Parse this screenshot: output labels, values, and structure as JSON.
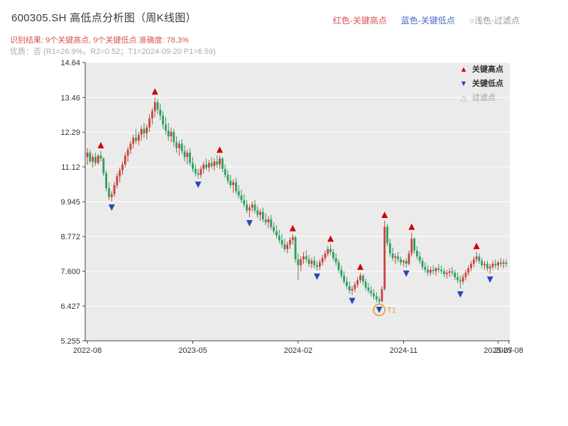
{
  "header": {
    "title": "600305.SH 高低点分析图（周K线图）",
    "top_legend": [
      {
        "label": "红色-关键高点",
        "color": "#d9544f"
      },
      {
        "label": "蓝色-关键低点",
        "color": "#4a69c9"
      },
      {
        "label": "○浅色-过滤点",
        "color": "#999999"
      }
    ],
    "result_line": "识别结果: 9个关键高点, 9个关键低点  准确度: 78.3%",
    "result_color": "#d9544f",
    "quality_line": "优质：否 (R1=26.9%，R2=0.52；T1=2024-09-20 P1=6.59)",
    "quality_color": "#aaaaaa"
  },
  "legend_box": {
    "items": [
      {
        "label": "关键高点",
        "symbol": "▲",
        "color": "#d40000"
      },
      {
        "label": "关键低点",
        "symbol": "▼",
        "color": "#2b46bd"
      },
      {
        "label": "过滤点",
        "symbol": "△",
        "color": "#aaaaaa"
      }
    ]
  },
  "chart_data": {
    "type": "candlestick",
    "title": "600305.SH 高低点分析图（周K线图）",
    "freq": "weekly",
    "ylim": [
      5.255,
      14.64
    ],
    "y_ticks": [
      "14.64",
      "13.46",
      "12.29",
      "11.12",
      "9.945",
      "8.772",
      "7.600",
      "6.427",
      "5.255"
    ],
    "x_ticks": [
      {
        "label": "2022-08",
        "index": 0
      },
      {
        "label": "2023-05",
        "index": 39
      },
      {
        "label": "2024-02",
        "index": 78
      },
      {
        "label": "2024-11",
        "index": 117
      },
      {
        "label": "2025-07",
        "index": 152
      },
      {
        "label": "2025-08",
        "index": 156
      }
    ],
    "colors": {
      "up": "#c8423c",
      "down": "#2e9e5e",
      "high_marker": "#d40000",
      "low_marker": "#2b46bd",
      "t1": "#e2a23c",
      "plot_bg": "#ebebeb",
      "axis": "#444444",
      "tick_text": "#333333"
    },
    "candles": [
      [
        11.45,
        11.75,
        11.2,
        11.6
      ],
      [
        11.6,
        11.7,
        11.25,
        11.3
      ],
      [
        11.3,
        11.55,
        11.1,
        11.45
      ],
      [
        11.45,
        11.6,
        11.15,
        11.25
      ],
      [
        11.25,
        11.55,
        11.2,
        11.5
      ],
      [
        11.5,
        11.65,
        11.3,
        11.4
      ],
      [
        11.4,
        11.45,
        10.8,
        10.9
      ],
      [
        10.9,
        11.0,
        10.3,
        10.4
      ],
      [
        10.4,
        10.6,
        10.0,
        10.1
      ],
      [
        10.1,
        10.3,
        9.95,
        10.2
      ],
      [
        10.2,
        10.6,
        10.1,
        10.5
      ],
      [
        10.5,
        10.9,
        10.4,
        10.8
      ],
      [
        10.8,
        11.1,
        10.6,
        11.0
      ],
      [
        11.0,
        11.3,
        10.85,
        11.2
      ],
      [
        11.2,
        11.6,
        11.1,
        11.5
      ],
      [
        11.5,
        11.8,
        11.3,
        11.7
      ],
      [
        11.7,
        12.0,
        11.55,
        11.9
      ],
      [
        11.9,
        12.2,
        11.75,
        12.1
      ],
      [
        12.1,
        12.4,
        11.9,
        12.0
      ],
      [
        12.0,
        12.3,
        11.85,
        12.2
      ],
      [
        12.2,
        12.5,
        12.0,
        12.4
      ],
      [
        12.4,
        12.6,
        12.1,
        12.25
      ],
      [
        12.25,
        12.55,
        12.05,
        12.45
      ],
      [
        12.45,
        12.9,
        12.3,
        12.75
      ],
      [
        12.75,
        13.1,
        12.55,
        13.0
      ],
      [
        13.0,
        13.46,
        12.8,
        13.3
      ],
      [
        13.3,
        13.4,
        12.9,
        13.05
      ],
      [
        13.05,
        13.25,
        12.7,
        12.85
      ],
      [
        12.85,
        13.0,
        12.4,
        12.55
      ],
      [
        12.55,
        12.8,
        12.2,
        12.35
      ],
      [
        12.35,
        12.6,
        12.0,
        12.15
      ],
      [
        12.15,
        12.45,
        11.95,
        12.3
      ],
      [
        12.3,
        12.4,
        11.8,
        11.95
      ],
      [
        11.95,
        12.15,
        11.6,
        11.75
      ],
      [
        11.75,
        12.0,
        11.5,
        11.9
      ],
      [
        11.9,
        12.05,
        11.55,
        11.65
      ],
      [
        11.65,
        11.85,
        11.3,
        11.45
      ],
      [
        11.45,
        11.7,
        11.2,
        11.6
      ],
      [
        11.6,
        11.75,
        11.15,
        11.25
      ],
      [
        11.25,
        11.45,
        10.95,
        11.05
      ],
      [
        11.05,
        11.2,
        10.8,
        10.9
      ],
      [
        10.9,
        11.05,
        10.72,
        10.85
      ],
      [
        10.85,
        11.15,
        10.75,
        11.05
      ],
      [
        11.05,
        11.3,
        10.9,
        11.2
      ],
      [
        11.2,
        11.4,
        11.0,
        11.1
      ],
      [
        11.1,
        11.35,
        10.95,
        11.25
      ],
      [
        11.25,
        11.45,
        11.05,
        11.15
      ],
      [
        11.15,
        11.4,
        11.0,
        11.3
      ],
      [
        11.3,
        11.5,
        11.1,
        11.2
      ],
      [
        11.2,
        11.5,
        11.05,
        11.4
      ],
      [
        11.4,
        11.45,
        10.95,
        11.05
      ],
      [
        11.05,
        11.2,
        10.75,
        10.85
      ],
      [
        10.85,
        11.0,
        10.55,
        10.65
      ],
      [
        10.65,
        10.85,
        10.4,
        10.5
      ],
      [
        10.5,
        10.7,
        10.25,
        10.6
      ],
      [
        10.6,
        10.75,
        10.2,
        10.3
      ],
      [
        10.3,
        10.5,
        10.05,
        10.15
      ],
      [
        10.15,
        10.35,
        9.9,
        10.0
      ],
      [
        10.0,
        10.2,
        9.75,
        9.85
      ],
      [
        9.85,
        10.0,
        9.55,
        9.65
      ],
      [
        9.65,
        9.85,
        9.42,
        9.75
      ],
      [
        9.75,
        9.95,
        9.6,
        9.85
      ],
      [
        9.85,
        10.0,
        9.55,
        9.65
      ],
      [
        9.65,
        9.8,
        9.4,
        9.5
      ],
      [
        9.5,
        9.7,
        9.3,
        9.6
      ],
      [
        9.6,
        9.75,
        9.25,
        9.35
      ],
      [
        9.35,
        9.55,
        9.15,
        9.25
      ],
      [
        9.25,
        9.45,
        9.05,
        9.35
      ],
      [
        9.35,
        9.5,
        9.0,
        9.1
      ],
      [
        9.1,
        9.25,
        8.85,
        8.95
      ],
      [
        8.95,
        9.15,
        8.7,
        8.8
      ],
      [
        8.8,
        9.0,
        8.55,
        8.65
      ],
      [
        8.65,
        8.85,
        8.4,
        8.5
      ],
      [
        8.5,
        8.7,
        8.25,
        8.35
      ],
      [
        8.35,
        8.6,
        8.2,
        8.5
      ],
      [
        8.5,
        8.75,
        8.35,
        8.65
      ],
      [
        8.65,
        8.85,
        8.5,
        8.75
      ],
      [
        8.75,
        8.8,
        7.9,
        8.0
      ],
      [
        8.0,
        8.2,
        7.3,
        7.8
      ],
      [
        7.8,
        8.1,
        7.6,
        8.0
      ],
      [
        8.0,
        8.25,
        7.85,
        8.1
      ],
      [
        8.1,
        8.3,
        7.9,
        8.0
      ],
      [
        8.0,
        8.15,
        7.75,
        7.85
      ],
      [
        7.85,
        8.05,
        7.7,
        7.95
      ],
      [
        7.95,
        8.1,
        7.7,
        7.8
      ],
      [
        7.8,
        7.95,
        7.62,
        7.75
      ],
      [
        7.75,
        8.0,
        7.65,
        7.9
      ],
      [
        7.9,
        8.15,
        7.8,
        8.05
      ],
      [
        8.05,
        8.3,
        7.95,
        8.2
      ],
      [
        8.2,
        8.45,
        8.1,
        8.35
      ],
      [
        8.35,
        8.5,
        8.15,
        8.25
      ],
      [
        8.25,
        8.35,
        7.95,
        8.05
      ],
      [
        8.05,
        8.2,
        7.8,
        7.9
      ],
      [
        7.9,
        8.0,
        7.55,
        7.65
      ],
      [
        7.65,
        7.8,
        7.35,
        7.45
      ],
      [
        7.45,
        7.6,
        7.15,
        7.25
      ],
      [
        7.25,
        7.4,
        7.0,
        7.1
      ],
      [
        7.1,
        7.25,
        6.85,
        6.95
      ],
      [
        6.95,
        7.1,
        6.8,
        7.0
      ],
      [
        7.0,
        7.25,
        6.9,
        7.15
      ],
      [
        7.15,
        7.4,
        7.05,
        7.3
      ],
      [
        7.3,
        7.55,
        7.2,
        7.45
      ],
      [
        7.45,
        7.5,
        7.15,
        7.25
      ],
      [
        7.25,
        7.35,
        6.95,
        7.05
      ],
      [
        7.05,
        7.2,
        6.85,
        6.95
      ],
      [
        6.95,
        7.1,
        6.75,
        6.85
      ],
      [
        6.85,
        7.0,
        6.65,
        6.75
      ],
      [
        6.75,
        6.9,
        6.55,
        6.65
      ],
      [
        6.65,
        6.75,
        6.5,
        6.59
      ],
      [
        6.59,
        7.1,
        6.55,
        7.0
      ],
      [
        7.0,
        9.3,
        6.95,
        9.1
      ],
      [
        9.1,
        9.2,
        8.45,
        8.55
      ],
      [
        8.55,
        8.7,
        8.1,
        8.2
      ],
      [
        8.2,
        8.4,
        7.95,
        8.05
      ],
      [
        8.05,
        8.2,
        7.85,
        8.1
      ],
      [
        8.1,
        8.25,
        7.9,
        8.0
      ],
      [
        8.0,
        8.1,
        7.8,
        7.9
      ],
      [
        7.9,
        8.0,
        7.75,
        7.95
      ],
      [
        7.95,
        8.05,
        7.72,
        7.85
      ],
      [
        7.85,
        8.3,
        7.8,
        8.2
      ],
      [
        8.2,
        8.9,
        8.1,
        8.7
      ],
      [
        8.7,
        8.75,
        8.2,
        8.3
      ],
      [
        8.3,
        8.45,
        8.0,
        8.1
      ],
      [
        8.1,
        8.25,
        7.85,
        7.95
      ],
      [
        7.95,
        8.05,
        7.65,
        7.75
      ],
      [
        7.75,
        7.9,
        7.55,
        7.65
      ],
      [
        7.65,
        7.8,
        7.45,
        7.55
      ],
      [
        7.55,
        7.75,
        7.45,
        7.65
      ],
      [
        7.65,
        7.8,
        7.5,
        7.6
      ],
      [
        7.6,
        7.75,
        7.45,
        7.7
      ],
      [
        7.7,
        7.85,
        7.55,
        7.65
      ],
      [
        7.65,
        7.8,
        7.5,
        7.6
      ],
      [
        7.6,
        7.7,
        7.4,
        7.5
      ],
      [
        7.5,
        7.65,
        7.35,
        7.55
      ],
      [
        7.55,
        7.7,
        7.4,
        7.6
      ],
      [
        7.6,
        7.75,
        7.45,
        7.55
      ],
      [
        7.55,
        7.65,
        7.3,
        7.4
      ],
      [
        7.4,
        7.55,
        7.2,
        7.3
      ],
      [
        7.3,
        7.45,
        7.02,
        7.25
      ],
      [
        7.25,
        7.5,
        7.15,
        7.4
      ],
      [
        7.4,
        7.65,
        7.3,
        7.55
      ],
      [
        7.55,
        7.8,
        7.45,
        7.7
      ],
      [
        7.7,
        7.95,
        7.6,
        7.85
      ],
      [
        7.85,
        8.1,
        7.75,
        8.0
      ],
      [
        8.0,
        8.25,
        7.9,
        8.1
      ],
      [
        8.1,
        8.2,
        7.85,
        7.95
      ],
      [
        7.95,
        8.05,
        7.7,
        7.8
      ],
      [
        7.8,
        7.95,
        7.65,
        7.85
      ],
      [
        7.85,
        7.95,
        7.6,
        7.7
      ],
      [
        7.7,
        7.85,
        7.52,
        7.75
      ],
      [
        7.75,
        7.95,
        7.65,
        7.85
      ],
      [
        7.85,
        8.0,
        7.7,
        7.8
      ],
      [
        7.8,
        7.95,
        7.65,
        7.9
      ],
      [
        7.9,
        8.05,
        7.75,
        7.85
      ],
      [
        7.85,
        8.0,
        7.7,
        7.9
      ],
      [
        7.9,
        8.0,
        7.75,
        7.85
      ]
    ],
    "key_highs": [
      {
        "index": 5,
        "price": 11.65
      },
      {
        "index": 25,
        "price": 13.46
      },
      {
        "index": 49,
        "price": 11.5
      },
      {
        "index": 76,
        "price": 8.85
      },
      {
        "index": 90,
        "price": 8.5
      },
      {
        "index": 101,
        "price": 7.55
      },
      {
        "index": 110,
        "price": 9.3
      },
      {
        "index": 120,
        "price": 8.9
      },
      {
        "index": 144,
        "price": 8.25
      }
    ],
    "key_lows": [
      {
        "index": 9,
        "price": 9.95
      },
      {
        "index": 41,
        "price": 10.72
      },
      {
        "index": 60,
        "price": 9.42
      },
      {
        "index": 85,
        "price": 7.62
      },
      {
        "index": 98,
        "price": 6.8
      },
      {
        "index": 108,
        "price": 6.5
      },
      {
        "index": 118,
        "price": 7.72
      },
      {
        "index": 138,
        "price": 7.02
      },
      {
        "index": 149,
        "price": 7.52
      }
    ],
    "t1": {
      "index": 108,
      "label": "T1",
      "date": "2024-09-20",
      "price": 6.59
    }
  }
}
